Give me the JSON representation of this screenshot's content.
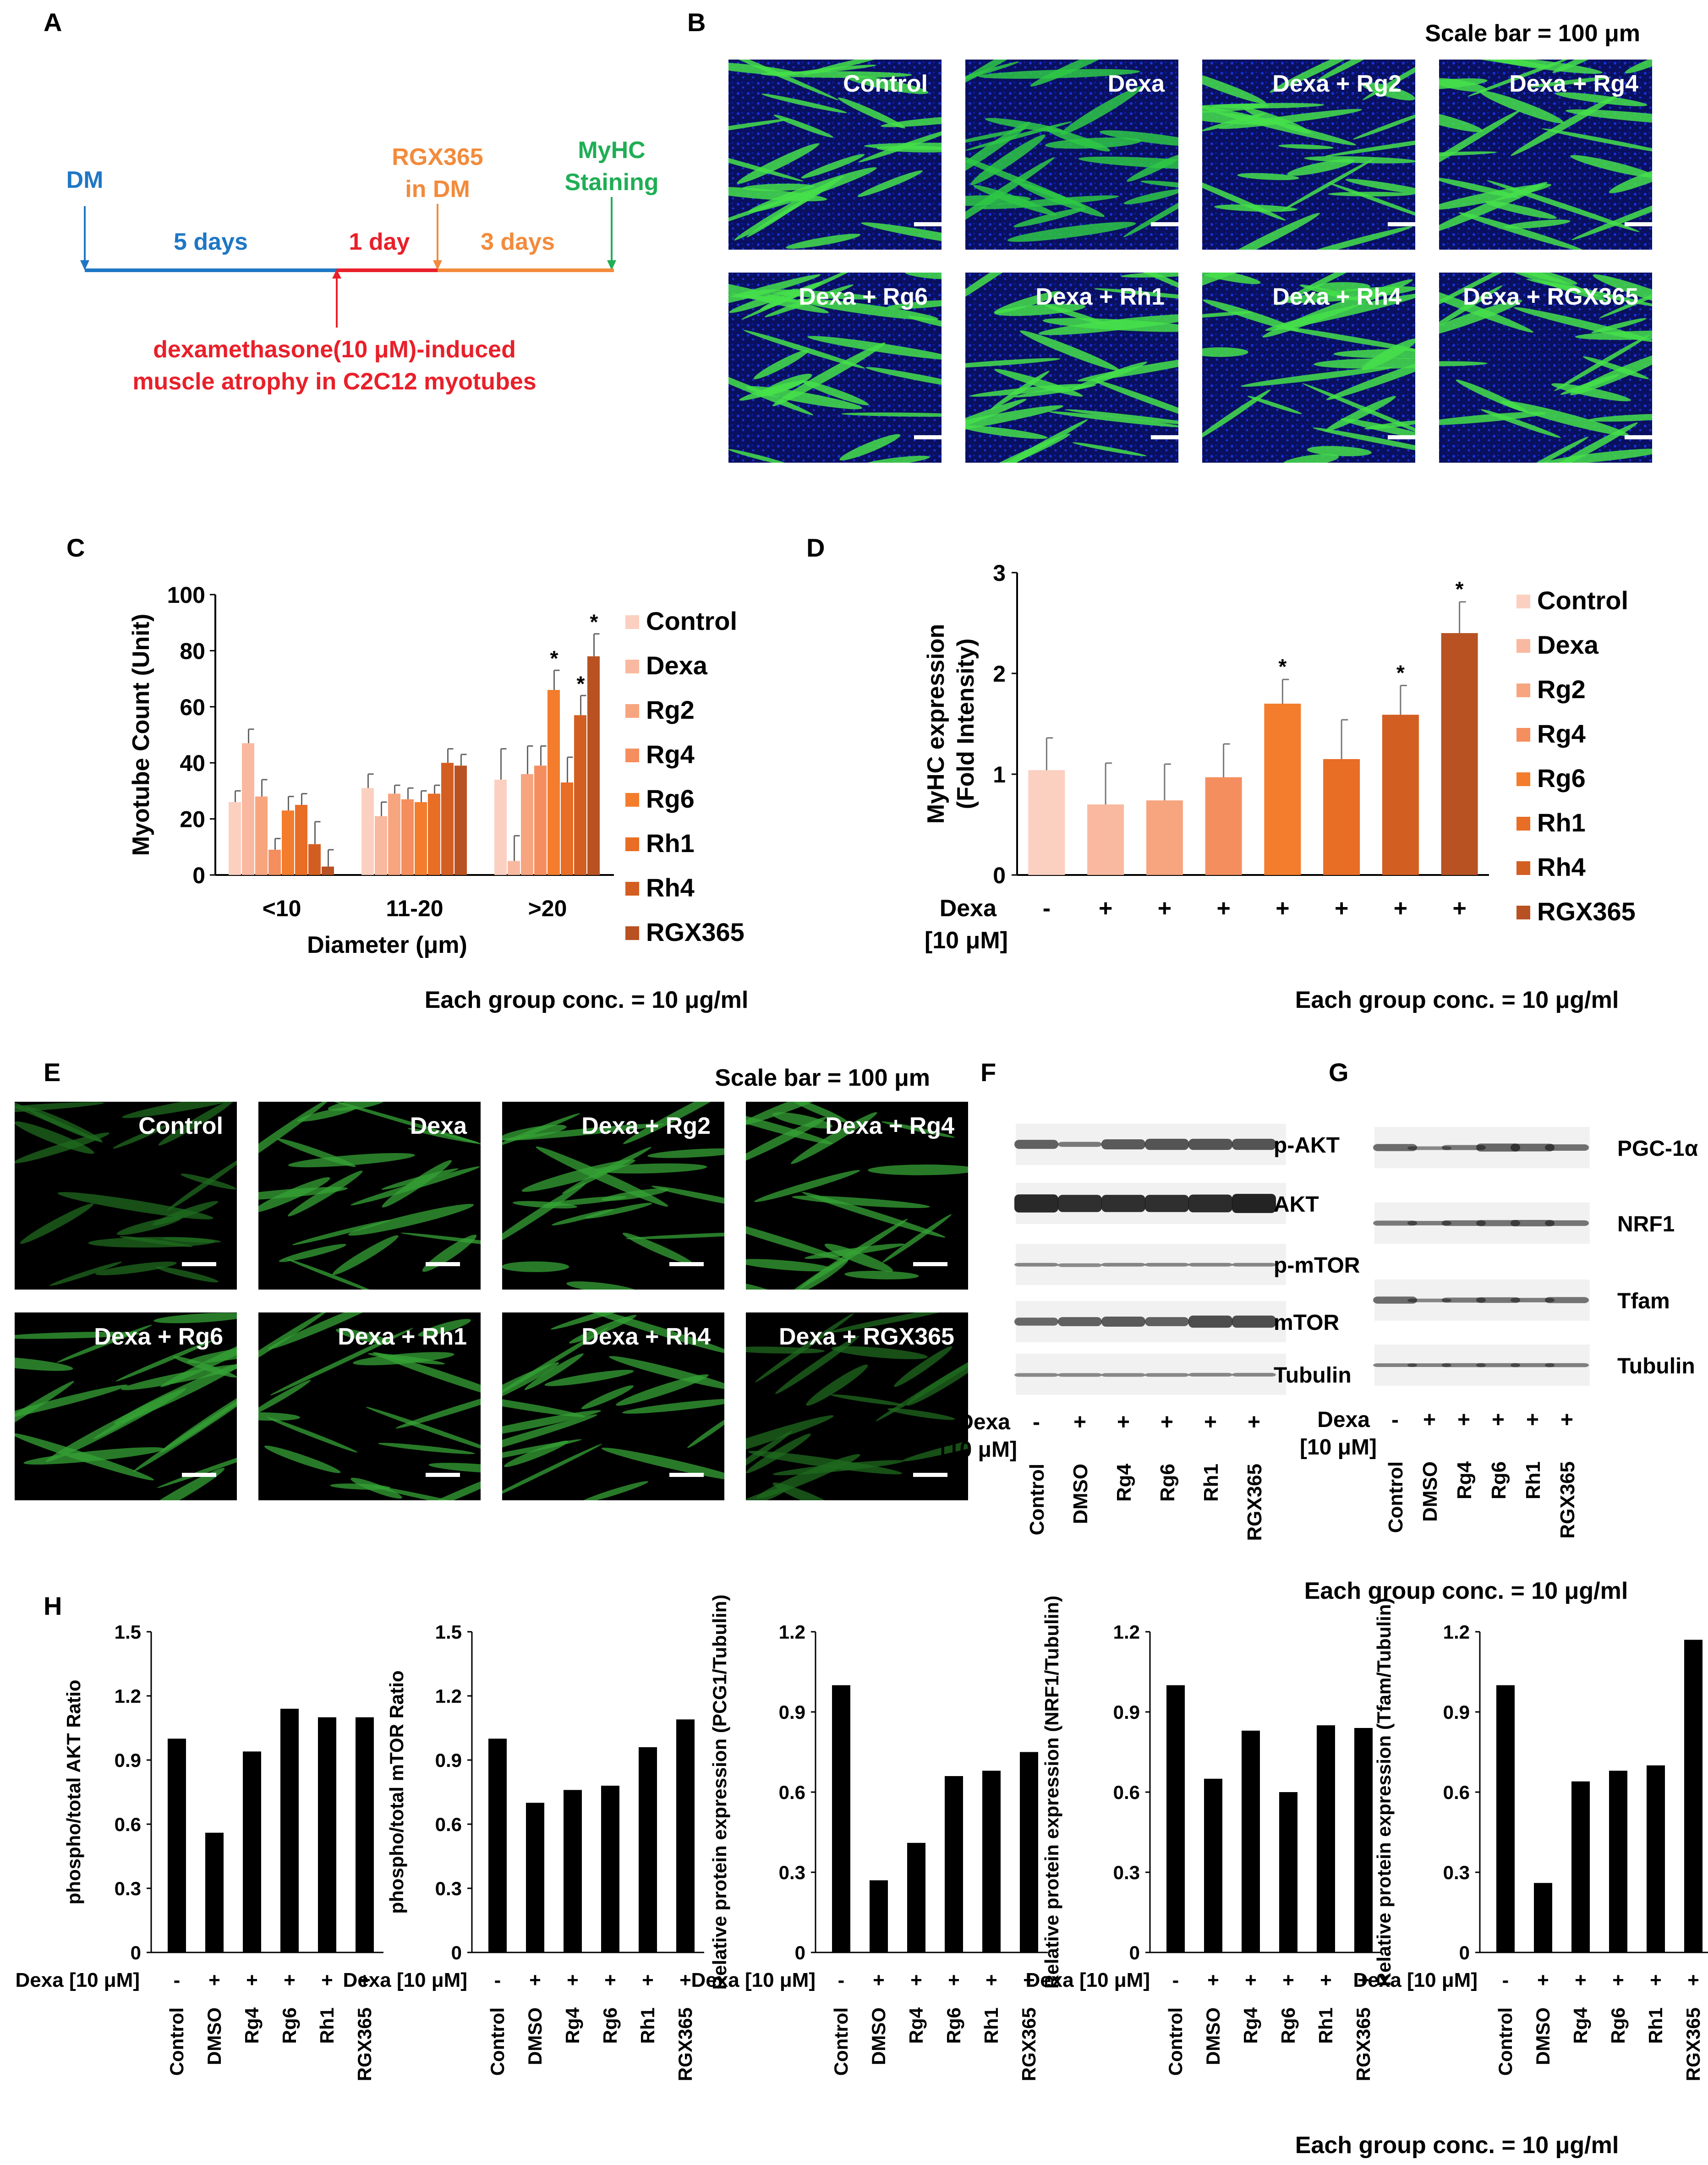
{
  "panel_letters": [
    "A",
    "B",
    "C",
    "D",
    "E",
    "F",
    "G",
    "H"
  ],
  "colors": {
    "dm": "#1f77c4",
    "rgx": "#f28b3c",
    "myhc": "#1fae55",
    "dexa": "#e8202a",
    "bars": [
      "#fbd0c0",
      "#f9b9a0",
      "#f7a57f",
      "#f58e5e",
      "#f37d2c",
      "#e86d25",
      "#d35e22",
      "#b85222"
    ],
    "black": "#000000"
  },
  "panelA": {
    "dm": "DM",
    "rgx_line1": "RGX365",
    "rgx_line2": "in DM",
    "myhc_line1": "MyHC",
    "myhc_line2": "Staining",
    "five_days": "5 days",
    "one_day": "1 day",
    "three_days": "3 days",
    "dexa_line1": "dexamethasone(10 μM)-induced",
    "dexa_line2": "muscle atrophy in C2C12 myotubes"
  },
  "panelB": {
    "scale_bar": "Scale bar = 100 μm",
    "labels": [
      "Control",
      "Dexa",
      "Dexa + Rg2",
      "Dexa + Rg4",
      "Dexa + Rg6",
      "Dexa + Rh1",
      "Dexa + Rh4",
      "Dexa + RGX365"
    ]
  },
  "panelE": {
    "scale_bar": "Scale bar = 100 μm",
    "labels": [
      "Control",
      "Dexa",
      "Dexa + Rg2",
      "Dexa + Rg4",
      "Dexa + Rg6",
      "Dexa + Rh1",
      "Dexa + Rh4",
      "Dexa + RGX365"
    ]
  },
  "legend": [
    "Control",
    "Dexa",
    "Rg2",
    "Rg4",
    "Rg6",
    "Rh1",
    "Rh4",
    "RGX365"
  ],
  "conc_note": "Each group conc. = 10 μg/ml",
  "panelF": {
    "bands": [
      "p-AKT",
      "AKT",
      "p-mTOR",
      "mTOR",
      "Tubulin"
    ],
    "dexa_label": "Dexa",
    "dexa_conc": "[10 μM]",
    "signs": [
      "-",
      "+",
      "+",
      "+",
      "+",
      "+"
    ],
    "lanes": [
      "Control",
      "DMSO",
      "Rg4",
      "Rg6",
      "Rh1",
      "RGX365"
    ]
  },
  "panelG": {
    "bands": [
      "PGC-1α",
      "NRF1",
      "Tfam",
      "Tubulin"
    ],
    "dexa_label": "Dexa",
    "dexa_conc": "[10 μM]",
    "signs": [
      "-",
      "+",
      "+",
      "+",
      "+",
      "+"
    ],
    "lanes": [
      "Control",
      "DMSO",
      "Rg4",
      "Rg6",
      "Rh1",
      "RGX365"
    ]
  },
  "chart_data": [
    {
      "id": "C",
      "type": "bar",
      "xlabel": "Diameter (μm)",
      "ylabel": "Myotube Count (Unit)",
      "ylim": [
        0,
        100
      ],
      "yticks": [
        0,
        20,
        40,
        60,
        80,
        100
      ],
      "categories": [
        "<10",
        "11-20",
        ">20"
      ],
      "series": [
        {
          "name": "Control",
          "values": [
            26,
            31,
            34
          ],
          "errors": [
            4,
            5,
            11
          ]
        },
        {
          "name": "Dexa",
          "values": [
            47,
            21,
            5
          ],
          "errors": [
            5,
            5,
            9
          ]
        },
        {
          "name": "Rg2",
          "values": [
            28,
            29,
            36
          ],
          "errors": [
            6,
            3,
            10
          ]
        },
        {
          "name": "Rg4",
          "values": [
            9,
            27,
            39
          ],
          "errors": [
            4,
            4,
            7
          ]
        },
        {
          "name": "Rg6",
          "values": [
            23,
            26,
            66
          ],
          "errors": [
            5,
            4,
            7
          ]
        },
        {
          "name": "Rh1",
          "values": [
            25,
            29,
            33
          ],
          "errors": [
            4,
            3,
            9
          ]
        },
        {
          "name": "Rh4",
          "values": [
            11,
            40,
            57
          ],
          "errors": [
            8,
            5,
            7
          ]
        },
        {
          "name": "RGX365",
          "values": [
            3,
            39,
            78
          ],
          "errors": [
            6,
            4,
            8
          ]
        }
      ],
      "annotations": [
        "*",
        "*",
        "*"
      ]
    },
    {
      "id": "D",
      "type": "bar",
      "ylabel": "MyHC expression (Fold Intensity)",
      "ylim": [
        0,
        3
      ],
      "yticks": [
        0,
        1,
        2,
        3
      ],
      "categories": [
        "Control",
        "Dexa",
        "Rg2",
        "Rg4",
        "Rg6",
        "Rh1",
        "Rh4",
        "RGX365"
      ],
      "values": [
        1.04,
        0.7,
        0.74,
        0.97,
        1.7,
        1.15,
        1.59,
        2.4
      ],
      "errors": [
        0.32,
        0.41,
        0.36,
        0.33,
        0.24,
        0.39,
        0.29,
        0.31
      ],
      "significant": [
        false,
        false,
        false,
        false,
        true,
        false,
        true,
        true
      ],
      "xlabel_line1": "Dexa",
      "xlabel_line2": "[10 μM]",
      "signs": [
        "-",
        "+",
        "+",
        "+",
        "+",
        "+",
        "+",
        "+"
      ],
      "annotations": [
        "*",
        "*",
        "*"
      ]
    },
    {
      "id": "H1",
      "type": "bar",
      "ylabel": "phospho/total AKT Ratio",
      "ylim": [
        0,
        1.5
      ],
      "yticks": [
        "0",
        "0.3",
        "0.6",
        "0.9",
        "1.2",
        "1.5"
      ],
      "categories": [
        "Control",
        "DMSO",
        "Rg4",
        "Rg6",
        "Rh1",
        "RGX365"
      ],
      "values": [
        1.0,
        0.56,
        0.94,
        1.14,
        1.1,
        1.1
      ],
      "signs": [
        "-",
        "+",
        "+",
        "+",
        "+",
        "+"
      ],
      "dexa_label": "Dexa [10 μM]"
    },
    {
      "id": "H2",
      "type": "bar",
      "ylabel": "phospho/total mTOR Ratio",
      "ylim": [
        0,
        1.5
      ],
      "yticks": [
        "0",
        "0.3",
        "0.6",
        "0.9",
        "1.2",
        "1.5"
      ],
      "categories": [
        "Control",
        "DMSO",
        "Rg4",
        "Rg6",
        "Rh1",
        "RGX365"
      ],
      "values": [
        1.0,
        0.7,
        0.76,
        0.78,
        0.96,
        1.09
      ],
      "signs": [
        "-",
        "+",
        "+",
        "+",
        "+",
        "+"
      ],
      "dexa_label": "Dexa [10 μM]"
    },
    {
      "id": "H3",
      "type": "bar",
      "ylabel": "Relative protein expression (PCG1/Tubulin)",
      "ylim": [
        0,
        1.2
      ],
      "yticks": [
        "0",
        "0.3",
        "0.6",
        "0.9",
        "1.2"
      ],
      "categories": [
        "Control",
        "DMSO",
        "Rg4",
        "Rg6",
        "Rh1",
        "RGX365"
      ],
      "values": [
        1.0,
        0.27,
        0.41,
        0.66,
        0.68,
        0.75
      ],
      "signs": [
        "-",
        "+",
        "+",
        "+",
        "+",
        "+"
      ],
      "dexa_label": "Dexa [10 μM]"
    },
    {
      "id": "H4",
      "type": "bar",
      "ylabel": "Relative protein expression (NRF1/Tubulin)",
      "ylim": [
        0,
        1.2
      ],
      "yticks": [
        "0",
        "0.3",
        "0.6",
        "0.9",
        "1.2"
      ],
      "categories": [
        "Control",
        "DMSO",
        "Rg4",
        "Rg6",
        "Rh1",
        "RGX365"
      ],
      "values": [
        1.0,
        0.65,
        0.83,
        0.6,
        0.85,
        0.84
      ],
      "signs": [
        "-",
        "+",
        "+",
        "+",
        "+",
        "+"
      ],
      "dexa_label": "Dexa [10 μM]"
    },
    {
      "id": "H5",
      "type": "bar",
      "ylabel": "Relative protein expression (Tfam/Tubulin)",
      "ylim": [
        0,
        1.2
      ],
      "yticks": [
        "0",
        "0.3",
        "0.6",
        "0.9",
        "1.2"
      ],
      "categories": [
        "Control",
        "DMSO",
        "Rg4",
        "Rg6",
        "Rh1",
        "RGX365"
      ],
      "values": [
        1.0,
        0.26,
        0.64,
        0.68,
        0.7,
        1.17
      ],
      "signs": [
        "-",
        "+",
        "+",
        "+",
        "+",
        "+"
      ],
      "dexa_label": "Dexa [10 μM]"
    }
  ]
}
